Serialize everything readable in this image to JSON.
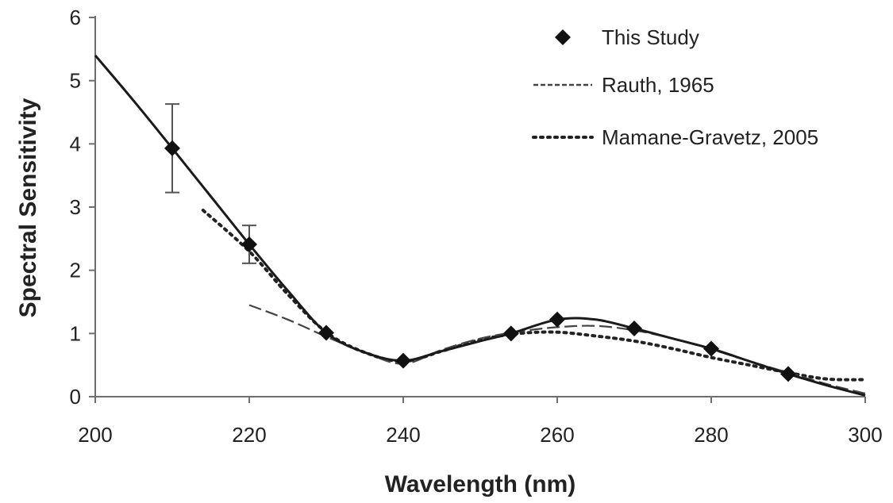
{
  "chart_data": {
    "type": "line",
    "title": "",
    "xlabel": "Wavelength (nm)",
    "ylabel": "Spectral Sensitivity",
    "xlim": [
      200,
      300
    ],
    "ylim": [
      0,
      6
    ],
    "x_ticks": [
      200,
      220,
      240,
      260,
      280,
      300
    ],
    "y_ticks": [
      0,
      1,
      2,
      3,
      4,
      5,
      6
    ],
    "grid": false,
    "legend_position": "top-right",
    "series": [
      {
        "name": "This Study",
        "style": "solid-with-diamond-markers",
        "color": "#1a1a1a",
        "markers": [
          {
            "x": 210,
            "y": 3.93,
            "err": 0.7
          },
          {
            "x": 220,
            "y": 2.41,
            "err": 0.3
          },
          {
            "x": 230,
            "y": 1.01
          },
          {
            "x": 240,
            "y": 0.57
          },
          {
            "x": 254,
            "y": 1.0
          },
          {
            "x": 260,
            "y": 1.22
          },
          {
            "x": 270,
            "y": 1.08
          },
          {
            "x": 280,
            "y": 0.76
          },
          {
            "x": 290,
            "y": 0.36
          }
        ],
        "line": [
          [
            200,
            5.4
          ],
          [
            205,
            4.68
          ],
          [
            210,
            3.93
          ],
          [
            215,
            3.17
          ],
          [
            220,
            2.41
          ],
          [
            225,
            1.68
          ],
          [
            230,
            1.01
          ],
          [
            235,
            0.7
          ],
          [
            240,
            0.57
          ],
          [
            245,
            0.72
          ],
          [
            250,
            0.88
          ],
          [
            254,
            1.0
          ],
          [
            260,
            1.22
          ],
          [
            265,
            1.22
          ],
          [
            270,
            1.08
          ],
          [
            275,
            0.92
          ],
          [
            280,
            0.76
          ],
          [
            285,
            0.56
          ],
          [
            290,
            0.36
          ],
          [
            295,
            0.18
          ],
          [
            300,
            0.02
          ]
        ]
      },
      {
        "name": "Rauth, 1965",
        "style": "dashed",
        "color": "#444444",
        "line": [
          [
            220,
            1.45
          ],
          [
            225,
            1.22
          ],
          [
            230,
            0.95
          ],
          [
            235,
            0.7
          ],
          [
            240,
            0.52
          ],
          [
            245,
            0.74
          ],
          [
            250,
            0.92
          ],
          [
            255,
            1.03
          ],
          [
            260,
            1.1
          ],
          [
            265,
            1.12
          ],
          [
            270,
            1.05
          ],
          [
            275,
            0.92
          ],
          [
            280,
            0.75
          ],
          [
            285,
            0.56
          ],
          [
            290,
            0.38
          ],
          [
            295,
            0.2
          ],
          [
            300,
            0.05
          ]
        ]
      },
      {
        "name": "Mamane-Gravetz, 2005",
        "style": "dotted",
        "color": "#222222",
        "line": [
          [
            214,
            2.95
          ],
          [
            220,
            2.3
          ],
          [
            225,
            1.62
          ],
          [
            230,
            1.02
          ],
          [
            235,
            0.7
          ],
          [
            240,
            0.56
          ],
          [
            245,
            0.72
          ],
          [
            250,
            0.9
          ],
          [
            255,
            1.0
          ],
          [
            260,
            1.02
          ],
          [
            265,
            0.96
          ],
          [
            270,
            0.88
          ],
          [
            275,
            0.76
          ],
          [
            280,
            0.62
          ],
          [
            285,
            0.5
          ],
          [
            290,
            0.38
          ],
          [
            295,
            0.28
          ],
          [
            300,
            0.27
          ]
        ]
      }
    ]
  }
}
